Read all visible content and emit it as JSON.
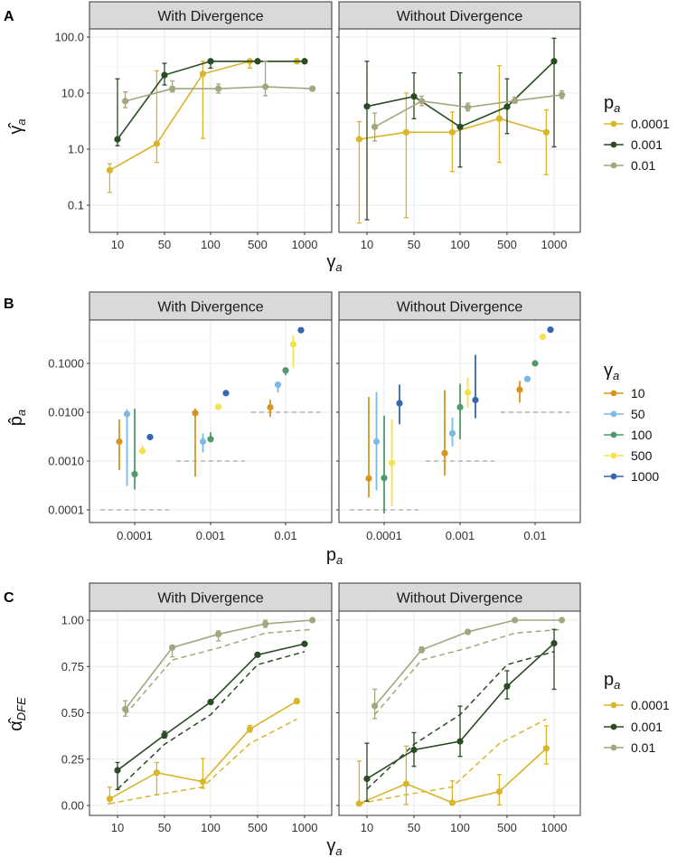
{
  "chart_data": [
    {
      "panel_label": "A",
      "type": "line",
      "y_scale": "log",
      "ylabel": {
        "main": "γ̂",
        "sub": "a"
      },
      "xlabel": {
        "main": "γ",
        "sub": "a"
      },
      "x_categories": [
        "10",
        "50",
        "100",
        "500",
        "1000"
      ],
      "y_ticks": [
        {
          "v": 100,
          "label": "100.0"
        },
        {
          "v": 10,
          "label": "10.0"
        },
        {
          "v": 1,
          "label": "1.0"
        },
        {
          "v": 0.1,
          "label": "0.1"
        }
      ],
      "legend": {
        "title": {
          "main": "p",
          "sub": "a"
        },
        "placement": "right",
        "entries": [
          "0.0001",
          "0.001",
          "0.01"
        ]
      },
      "colors": [
        "#d8b52b",
        "#2a4b24",
        "#a4a67e"
      ],
      "facets": [
        {
          "title": "With Divergence",
          "series": [
            {
              "name": "0.0001",
              "values": [
                0.42,
                1.25,
                22,
                37,
                37
              ],
              "lo": [
                0.17,
                0.58,
                1.55,
                28,
                36
              ],
              "hi": [
                0.55,
                25,
                37,
                38,
                38
              ]
            },
            {
              "name": "0.001",
              "values": [
                1.5,
                21,
                37,
                37,
                37
              ],
              "lo": [
                1.15,
                14,
                28,
                36,
                36
              ],
              "hi": [
                18,
                34,
                38,
                38,
                38
              ]
            },
            {
              "name": "0.01",
              "values": [
                7.2,
                12,
                12,
                13,
                12
              ],
              "lo": [
                5.5,
                10.5,
                10,
                9,
                11
              ],
              "hi": [
                10.5,
                16.5,
                14.5,
                37,
                13
              ]
            }
          ]
        },
        {
          "title": "Without Divergence",
          "series": [
            {
              "name": "0.0001",
              "values": [
                1.5,
                2.0,
                2.0,
                3.5,
                2.0
              ],
              "lo": [
                0.048,
                0.06,
                0.4,
                0.58,
                0.35
              ],
              "hi": [
                3.1,
                10,
                4.6,
                31,
                5
              ]
            },
            {
              "name": "0.001",
              "values": [
                5.8,
                8.7,
                2.5,
                5.7,
                37
              ],
              "lo": [
                0.055,
                3.5,
                0.48,
                1.9,
                1.1
              ],
              "hi": [
                37,
                23,
                23,
                18,
                95
              ]
            },
            {
              "name": "0.01",
              "values": [
                2.5,
                7.2,
                5.6,
                7.3,
                9.3
              ],
              "lo": [
                1.4,
                6,
                4.8,
                6.6,
                8
              ],
              "hi": [
                4.4,
                8.8,
                6.6,
                8.5,
                11
              ]
            }
          ]
        }
      ]
    },
    {
      "panel_label": "B",
      "type": "scatter",
      "y_scale": "log",
      "ylabel": {
        "main": "p̂",
        "sub": "a"
      },
      "xlabel": {
        "main": "p",
        "sub": "a"
      },
      "x_categories": [
        "0.0001",
        "0.001",
        "0.01"
      ],
      "true_values": [
        0.0001,
        0.001,
        0.01
      ],
      "y_ticks": [
        {
          "v": 0.1,
          "label": "0.1000"
        },
        {
          "v": 0.01,
          "label": "0.0100"
        },
        {
          "v": 0.001,
          "label": "0.0010"
        },
        {
          "v": 0.0001,
          "label": "0.0001"
        }
      ],
      "legend": {
        "title": {
          "main": "γ",
          "sub": "a"
        },
        "placement": "right",
        "entries": [
          "10",
          "50",
          "100",
          "500",
          "1000"
        ]
      },
      "colors": [
        "#d9941f",
        "#7db8e6",
        "#4f9a6b",
        "#f1e34a",
        "#3566b0"
      ],
      "facets": [
        {
          "title": "With Divergence",
          "series": [
            {
              "name": "10",
              "values": [
                0.0025,
                0.0096,
                0.0126
              ],
              "lo": [
                0.00065,
                0.00048,
                0.008
              ],
              "hi": [
                0.0071,
                0.012,
                0.018
              ]
            },
            {
              "name": "50",
              "values": [
                0.0092,
                0.0025,
                0.0366
              ],
              "lo": [
                0.00031,
                0.0015,
                0.0254
              ],
              "hi": [
                0.0115,
                0.0037,
                0.043
              ]
            },
            {
              "name": "100",
              "values": [
                0.00054,
                0.0028,
                0.072
              ],
              "lo": [
                0.00026,
                0.0025,
                0.057
              ],
              "hi": [
                0.0118,
                0.0039,
                0.083
              ]
            },
            {
              "name": "500",
              "values": [
                0.0016,
                0.0129,
                0.247
              ],
              "lo": [
                0.0014,
                0.0122,
                0.083
              ],
              "hi": [
                0.0021,
                0.0136,
                0.37
              ]
            },
            {
              "name": "1000",
              "values": [
                0.0031,
                0.0246,
                0.48
              ],
              "lo": [
                0.0029,
                0.0235,
                0.46
              ],
              "hi": [
                0.0033,
                0.026,
                0.5
              ]
            }
          ]
        },
        {
          "title": "Without Divergence",
          "series": [
            {
              "name": "10",
              "values": [
                0.00044,
                0.00145,
                0.029
              ],
              "lo": [
                0.00018,
                0.0005,
                0.0157
              ],
              "hi": [
                0.0206,
                0.0284,
                0.044
              ]
            },
            {
              "name": "50",
              "values": [
                0.0025,
                0.0037,
                0.048
              ],
              "lo": [
                0.00025,
                0.002,
                0.042
              ],
              "hi": [
                0.026,
                0.0078,
                0.055
              ]
            },
            {
              "name": "100",
              "values": [
                0.00045,
                0.0127,
                0.1
              ],
              "lo": [
                8.5e-05,
                0.0028,
                0.096
              ],
              "hi": [
                0.0085,
                0.038,
                0.104
              ]
            },
            {
              "name": "500",
              "values": [
                0.00091,
                0.0254,
                0.35
              ],
              "lo": [
                0.00012,
                0.0126,
                0.33
              ],
              "hi": [
                0.0071,
                0.0515,
                0.37
              ]
            },
            {
              "name": "1000",
              "values": [
                0.0153,
                0.0178,
                0.49
              ],
              "lo": [
                0.0057,
                0.0075,
                0.47
              ],
              "hi": [
                0.037,
                0.15,
                0.51
              ]
            }
          ]
        }
      ]
    },
    {
      "panel_label": "C",
      "type": "line",
      "y_scale": "linear",
      "ylabel": {
        "main": "α̂",
        "sub": "DFE"
      },
      "xlabel": {
        "main": "γ",
        "sub": "a"
      },
      "x_categories": [
        "10",
        "50",
        "100",
        "500",
        "1000"
      ],
      "y_ticks": [
        {
          "v": 1,
          "label": "1.00"
        },
        {
          "v": 0.75,
          "label": "0.75"
        },
        {
          "v": 0.5,
          "label": "0.50"
        },
        {
          "v": 0.25,
          "label": "0.25"
        },
        {
          "v": 0,
          "label": "0.00"
        }
      ],
      "legend": {
        "title": {
          "main": "p",
          "sub": "a"
        },
        "placement": "right",
        "entries": [
          "0.0001",
          "0.001",
          "0.01"
        ]
      },
      "colors": [
        "#d8b52b",
        "#2a4b24",
        "#a4a67e"
      ],
      "expected": [
        [
          0.01,
          0.058,
          0.1,
          0.334,
          0.466
        ],
        [
          0.088,
          0.33,
          0.49,
          0.76,
          0.83
        ],
        [
          0.49,
          0.785,
          0.85,
          0.93,
          0.95
        ]
      ],
      "facets": [
        {
          "title": "With Divergence",
          "series": [
            {
              "name": "0.0001",
              "values": [
                0.036,
                0.177,
                0.128,
                0.412,
                0.563
              ],
              "lo": [
                0.01,
                0.058,
                0.093,
                0.396,
                0.55
              ],
              "hi": [
                0.099,
                0.232,
                0.253,
                0.432,
                0.576
              ]
            },
            {
              "name": "0.001",
              "values": [
                0.19,
                0.38,
                0.558,
                0.813,
                0.872
              ],
              "lo": [
                0.086,
                0.364,
                0.547,
                0.805,
                0.865
              ],
              "hi": [
                0.232,
                0.4,
                0.57,
                0.823,
                0.88
              ]
            },
            {
              "name": "0.01",
              "values": [
                0.52,
                0.852,
                0.924,
                0.98,
                1.0
              ],
              "lo": [
                0.482,
                0.802,
                0.888,
                0.961,
                0.995
              ],
              "hi": [
                0.565,
                0.864,
                0.942,
                1.0,
                1.0
              ]
            }
          ]
        },
        {
          "title": "Without Divergence",
          "series": [
            {
              "name": "0.0001",
              "values": [
                0.01,
                0.117,
                0.015,
                0.075,
                0.308
              ],
              "lo": [
                0.01,
                0.006,
                0.015,
                0.003,
                0.224
              ],
              "hi": [
                0.24,
                0.32,
                0.133,
                0.167,
                0.43
              ]
            },
            {
              "name": "0.001",
              "values": [
                0.144,
                0.3,
                0.346,
                0.643,
                0.875
              ],
              "lo": [
                0.023,
                0.211,
                0.265,
                0.575,
                0.627
              ],
              "hi": [
                0.336,
                0.393,
                0.536,
                0.727,
                0.95
              ]
            },
            {
              "name": "0.01",
              "values": [
                0.537,
                0.84,
                0.937,
                1.0,
                1.0
              ],
              "lo": [
                0.469,
                0.825,
                0.925,
                0.995,
                0.995
              ],
              "hi": [
                0.627,
                0.855,
                0.948,
                1.0,
                1.0
              ]
            }
          ]
        }
      ]
    }
  ]
}
